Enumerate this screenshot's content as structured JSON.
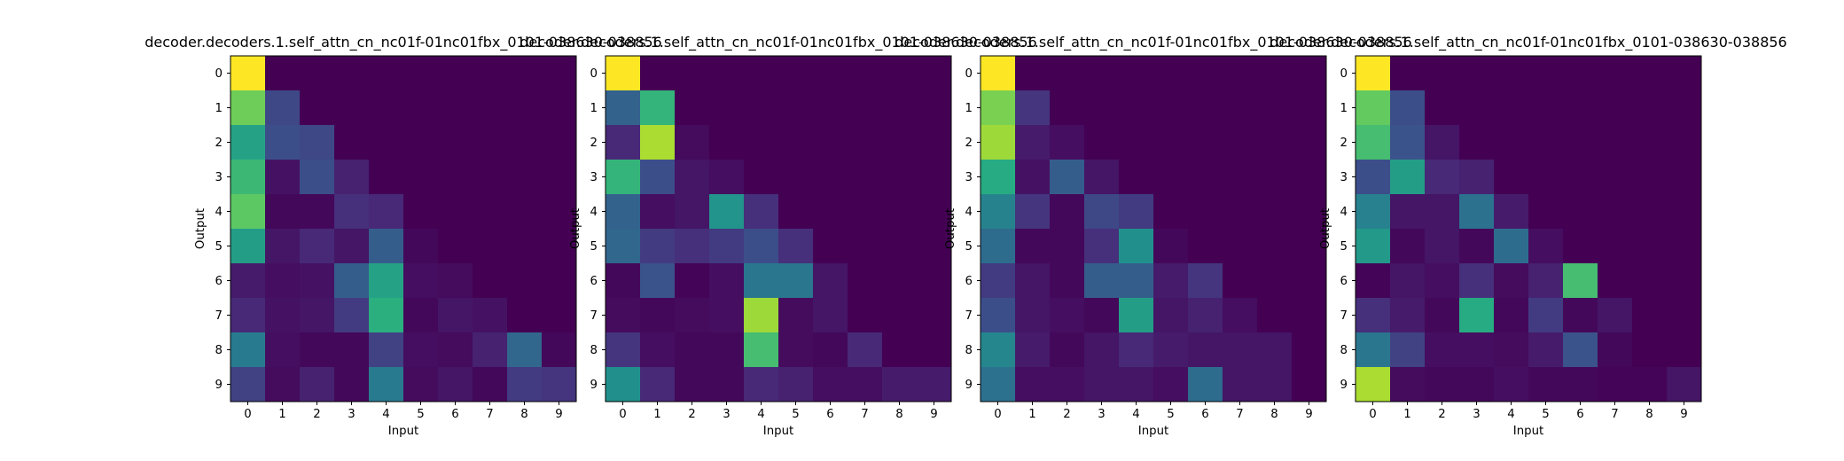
{
  "chart_data": [
    {
      "type": "heatmap",
      "title": "decoder.decoders.1.self_attn_cn_nc01f-01nc01fbx_0101-038630-038856",
      "xlabel": "Input",
      "ylabel": "Output",
      "x_ticks": [
        "0",
        "1",
        "2",
        "3",
        "4",
        "5",
        "6",
        "7",
        "8",
        "9"
      ],
      "y_ticks": [
        "0",
        "1",
        "2",
        "3",
        "4",
        "5",
        "6",
        "7",
        "8",
        "9"
      ],
      "colormap": "viridis",
      "vmin": 0,
      "vmax": 1,
      "values": [
        [
          1.0,
          0,
          0,
          0,
          0,
          0,
          0,
          0,
          0,
          0
        ],
        [
          0.78,
          0.22,
          0,
          0,
          0,
          0,
          0,
          0,
          0,
          0
        ],
        [
          0.58,
          0.24,
          0.22,
          0,
          0,
          0,
          0,
          0,
          0,
          0
        ],
        [
          0.68,
          0.05,
          0.24,
          0.1,
          0,
          0,
          0,
          0,
          0,
          0
        ],
        [
          0.75,
          0.02,
          0.02,
          0.14,
          0.12,
          0,
          0,
          0,
          0,
          0
        ],
        [
          0.56,
          0.06,
          0.12,
          0.06,
          0.3,
          0.02,
          0,
          0,
          0,
          0
        ],
        [
          0.08,
          0.04,
          0.05,
          0.3,
          0.58,
          0.04,
          0.03,
          0,
          0,
          0
        ],
        [
          0.12,
          0.05,
          0.06,
          0.18,
          0.64,
          0.02,
          0.06,
          0.05,
          0,
          0
        ],
        [
          0.42,
          0.04,
          0.02,
          0.02,
          0.2,
          0.04,
          0.03,
          0.1,
          0.34,
          0.02
        ],
        [
          0.2,
          0.03,
          0.1,
          0.02,
          0.42,
          0.03,
          0.06,
          0.02,
          0.18,
          0.16
        ]
      ]
    },
    {
      "type": "heatmap",
      "title": "decoder.decoders.1.self_attn_cn_nc01f-01nc01fbx_0101-038630-038856",
      "xlabel": "Input",
      "ylabel": "Output",
      "x_ticks": [
        "0",
        "1",
        "2",
        "3",
        "4",
        "5",
        "6",
        "7",
        "8",
        "9"
      ],
      "y_ticks": [
        "0",
        "1",
        "2",
        "3",
        "4",
        "5",
        "6",
        "7",
        "8",
        "9"
      ],
      "colormap": "viridis",
      "vmin": 0,
      "vmax": 1,
      "values": [
        [
          1.0,
          0,
          0,
          0,
          0,
          0,
          0,
          0,
          0,
          0
        ],
        [
          0.32,
          0.66,
          0,
          0,
          0,
          0,
          0,
          0,
          0,
          0
        ],
        [
          0.12,
          0.88,
          0.03,
          0,
          0,
          0,
          0,
          0,
          0,
          0
        ],
        [
          0.66,
          0.24,
          0.06,
          0.04,
          0,
          0,
          0,
          0,
          0,
          0
        ],
        [
          0.32,
          0.04,
          0.06,
          0.52,
          0.14,
          0,
          0,
          0,
          0,
          0
        ],
        [
          0.34,
          0.18,
          0.14,
          0.18,
          0.24,
          0.14,
          0,
          0,
          0,
          0
        ],
        [
          0.02,
          0.26,
          0.01,
          0.04,
          0.4,
          0.4,
          0.06,
          0,
          0,
          0
        ],
        [
          0.03,
          0.02,
          0.03,
          0.04,
          0.86,
          0.03,
          0.06,
          0,
          0,
          0
        ],
        [
          0.16,
          0.04,
          0.02,
          0.02,
          0.7,
          0.03,
          0.02,
          0.12,
          0,
          0
        ],
        [
          0.5,
          0.12,
          0.02,
          0.02,
          0.12,
          0.1,
          0.04,
          0.04,
          0.08,
          0.08
        ]
      ]
    },
    {
      "type": "heatmap",
      "title": "decoder.decoders.1.self_attn_cn_nc01f-01nc01fbx_0101-038630-038856",
      "xlabel": "Input",
      "ylabel": "Output",
      "x_ticks": [
        "0",
        "1",
        "2",
        "3",
        "4",
        "5",
        "6",
        "7",
        "8",
        "9"
      ],
      "y_ticks": [
        "0",
        "1",
        "2",
        "3",
        "4",
        "5",
        "6",
        "7",
        "8",
        "9"
      ],
      "colormap": "viridis",
      "vmin": 0,
      "vmax": 1,
      "values": [
        [
          1.0,
          0,
          0,
          0,
          0,
          0,
          0,
          0,
          0,
          0
        ],
        [
          0.8,
          0.16,
          0,
          0,
          0,
          0,
          0,
          0,
          0,
          0
        ],
        [
          0.86,
          0.08,
          0.04,
          0,
          0,
          0,
          0,
          0,
          0,
          0
        ],
        [
          0.62,
          0.05,
          0.3,
          0.06,
          0,
          0,
          0,
          0,
          0,
          0
        ],
        [
          0.45,
          0.16,
          0.02,
          0.22,
          0.18,
          0,
          0,
          0,
          0,
          0
        ],
        [
          0.36,
          0.02,
          0.02,
          0.14,
          0.5,
          0.02,
          0,
          0,
          0,
          0
        ],
        [
          0.18,
          0.06,
          0.02,
          0.3,
          0.3,
          0.08,
          0.16,
          0,
          0,
          0
        ],
        [
          0.24,
          0.06,
          0.04,
          0.02,
          0.56,
          0.06,
          0.1,
          0.04,
          0,
          0
        ],
        [
          0.46,
          0.08,
          0.02,
          0.06,
          0.12,
          0.08,
          0.06,
          0.06,
          0.06,
          0
        ],
        [
          0.38,
          0.04,
          0.04,
          0.06,
          0.06,
          0.04,
          0.36,
          0.06,
          0.06,
          0
        ]
      ]
    },
    {
      "type": "heatmap",
      "title": "decoder.decoders.1.self_attn_cn_nc01f-01nc01fbx_0101-038630-038856",
      "xlabel": "Input",
      "ylabel": "Output",
      "x_ticks": [
        "0",
        "1",
        "2",
        "3",
        "4",
        "5",
        "6",
        "7",
        "8",
        "9"
      ],
      "y_ticks": [
        "0",
        "1",
        "2",
        "3",
        "4",
        "5",
        "6",
        "7",
        "8",
        "9"
      ],
      "colormap": "viridis",
      "vmin": 0,
      "vmax": 1,
      "values": [
        [
          1.0,
          0,
          0,
          0,
          0,
          0,
          0,
          0,
          0,
          0
        ],
        [
          0.76,
          0.24,
          0,
          0,
          0,
          0,
          0,
          0,
          0,
          0
        ],
        [
          0.7,
          0.26,
          0.06,
          0,
          0,
          0,
          0,
          0,
          0,
          0
        ],
        [
          0.24,
          0.56,
          0.12,
          0.1,
          0,
          0,
          0,
          0,
          0,
          0
        ],
        [
          0.44,
          0.06,
          0.06,
          0.38,
          0.08,
          0,
          0,
          0,
          0,
          0
        ],
        [
          0.54,
          0.02,
          0.06,
          0.02,
          0.36,
          0.04,
          0,
          0,
          0,
          0
        ],
        [
          0.01,
          0.06,
          0.04,
          0.14,
          0.03,
          0.1,
          0.7,
          0,
          0,
          0
        ],
        [
          0.14,
          0.08,
          0.02,
          0.62,
          0.02,
          0.18,
          0.02,
          0.06,
          0,
          0
        ],
        [
          0.4,
          0.2,
          0.04,
          0.04,
          0.03,
          0.08,
          0.26,
          0.02,
          0,
          0
        ],
        [
          0.88,
          0.03,
          0.02,
          0.02,
          0.04,
          0.02,
          0.02,
          0.01,
          0.01,
          0.06
        ]
      ]
    }
  ]
}
